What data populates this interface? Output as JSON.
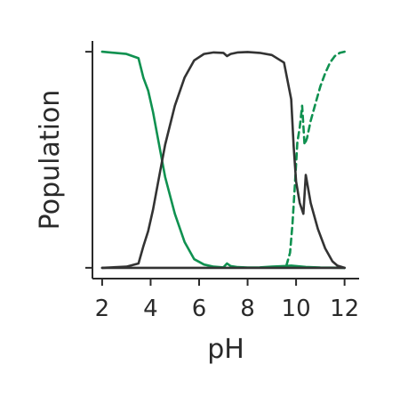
{
  "chart_data": {
    "type": "line",
    "title": "",
    "xlabel": "pH",
    "ylabel": "Population",
    "xlim": [
      1.6,
      12.6
    ],
    "ylim": [
      -0.05,
      1.05
    ],
    "xticks": [
      2,
      4,
      6,
      8,
      10,
      12
    ],
    "xtick_labels": [
      "2",
      "4",
      "6",
      "8",
      "10",
      "12"
    ],
    "yticks": [
      0,
      1
    ],
    "yticks_labeled": false,
    "grid": false,
    "legend": "none",
    "series": [
      {
        "color": "#0f9150",
        "style": "solid",
        "x": [
          2.0,
          3.0,
          3.5,
          3.7,
          3.9,
          4.1,
          4.3,
          4.6,
          5.0,
          5.4,
          5.8,
          6.2,
          6.6,
          7.0,
          7.15,
          7.3,
          7.6,
          8.0,
          8.5,
          9.0,
          9.5,
          9.8,
          10.0,
          10.4,
          11.0,
          12.0
        ],
        "y": [
          1.0,
          0.99,
          0.97,
          0.88,
          0.82,
          0.72,
          0.6,
          0.42,
          0.25,
          0.12,
          0.04,
          0.015,
          0.005,
          0.002,
          0.02,
          0.008,
          0.003,
          0.001,
          0.002,
          0.005,
          0.008,
          0.01,
          0.008,
          0.004,
          0.001,
          0.0
        ]
      },
      {
        "color": "#0f9150",
        "style": "dashed",
        "x": [
          9.6,
          9.75,
          9.85,
          9.95,
          10.05,
          10.15,
          10.25,
          10.35,
          10.45,
          10.6,
          10.8,
          11.0,
          11.2,
          11.4,
          11.6,
          11.8,
          12.0
        ],
        "y": [
          0.01,
          0.07,
          0.2,
          0.38,
          0.58,
          0.65,
          0.75,
          0.57,
          0.6,
          0.68,
          0.76,
          0.84,
          0.9,
          0.95,
          0.98,
          0.995,
          1.0
        ]
      },
      {
        "color": "#333333",
        "style": "solid",
        "x": [
          2.0,
          3.0,
          3.5,
          3.7,
          3.9,
          4.1,
          4.3,
          4.6,
          5.0,
          5.4,
          5.8,
          6.2,
          6.6,
          7.0,
          7.15,
          7.3,
          7.6,
          8.0,
          8.5,
          9.0,
          9.5,
          9.8,
          9.9,
          10.0,
          10.15,
          10.3,
          10.4,
          10.6,
          10.9,
          11.2,
          11.5,
          11.7,
          12.0
        ],
        "y": [
          0.0,
          0.005,
          0.02,
          0.1,
          0.17,
          0.27,
          0.39,
          0.57,
          0.75,
          0.88,
          0.96,
          0.99,
          0.997,
          0.995,
          0.98,
          0.99,
          0.997,
          0.999,
          0.995,
          0.985,
          0.95,
          0.78,
          0.56,
          0.4,
          0.3,
          0.25,
          0.43,
          0.3,
          0.18,
          0.09,
          0.03,
          0.01,
          0.0
        ]
      },
      {
        "color": "#333333",
        "style": "solid",
        "x": [
          2.0,
          6.0,
          10.0,
          12.0
        ],
        "y": [
          0.0,
          0.0,
          0.0,
          0.0
        ]
      }
    ]
  }
}
